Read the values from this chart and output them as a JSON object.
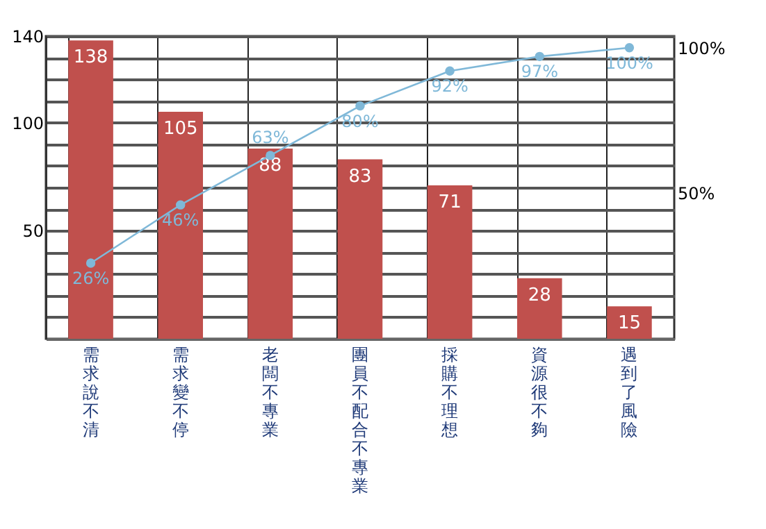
{
  "chart_data": {
    "type": "bar",
    "categories": [
      "需求說不清",
      "需求變不停",
      "老闆不專業",
      "團員不配合不專業",
      "採購不理想",
      "資源很不夠",
      "遇到了風險"
    ],
    "series": [
      {
        "color": "#c0504d",
        "values": [
          138,
          105,
          88,
          83,
          71,
          28,
          15
        ],
        "value_labels": [
          "138",
          "105",
          "88",
          "83",
          "71",
          "28",
          "15"
        ]
      },
      {
        "type": "line",
        "axis": "y2",
        "color": "#7fb8d8",
        "values": [
          26,
          46,
          63,
          80,
          92,
          97,
          100
        ],
        "value_labels": [
          "26%",
          "46%",
          "63%",
          "80%",
          "92%",
          "97%",
          "100%"
        ]
      }
    ],
    "ylim": [
      0,
      140
    ],
    "yticks": [
      {
        "value": 10,
        "label": null
      },
      {
        "value": 20,
        "label": null
      },
      {
        "value": 30,
        "label": null
      },
      {
        "value": 40,
        "label": null
      },
      50,
      {
        "value": 60,
        "label": null
      },
      {
        "value": 70,
        "label": null
      },
      {
        "value": 80,
        "label": null
      },
      {
        "value": 90,
        "label": null
      },
      100,
      {
        "value": 110,
        "label": null
      },
      {
        "value": 120,
        "label": null
      },
      {
        "value": 130,
        "label": null
      },
      140
    ],
    "y2lim": [
      0,
      104
    ],
    "y2ticks": [
      {
        "value": 50,
        "label": "50%"
      },
      {
        "value": 100,
        "label": "100%"
      }
    ],
    "grid": true,
    "marker": "circle",
    "line_style": "solid"
  }
}
